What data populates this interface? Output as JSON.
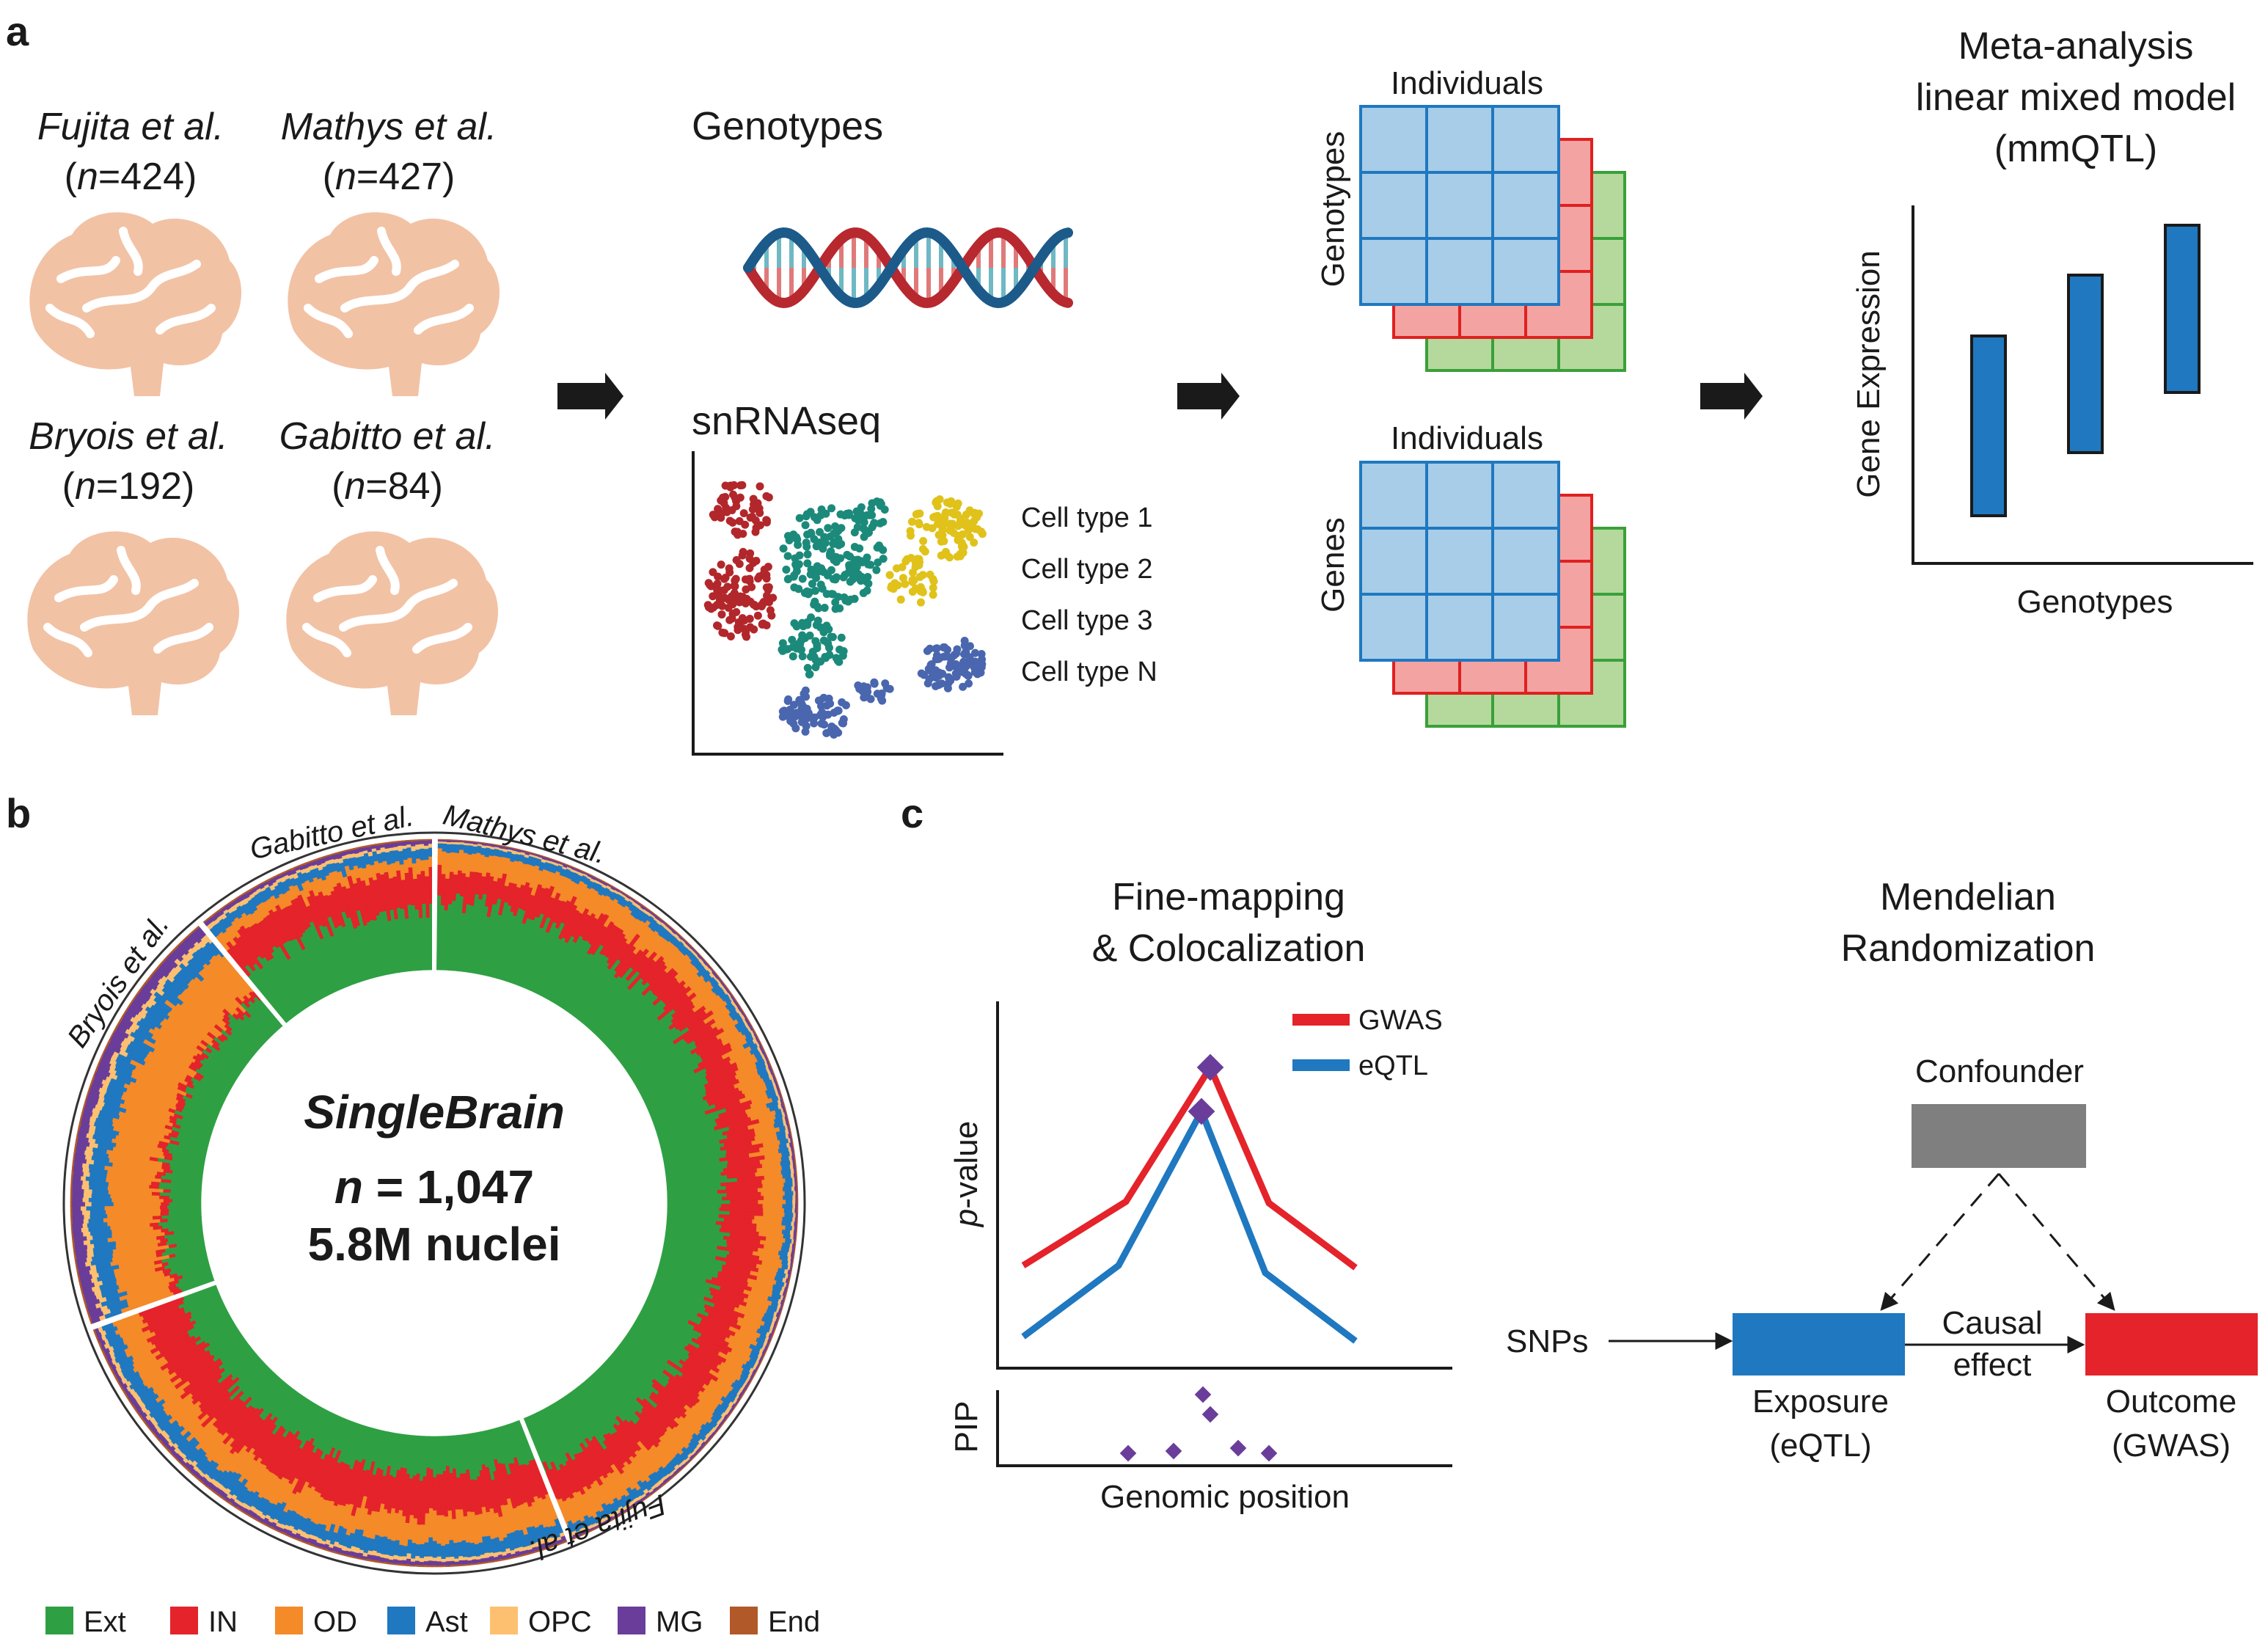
{
  "panels": {
    "a": {
      "label": "a",
      "studies": [
        {
          "name": "Fujita et al.",
          "n_prefix": "(",
          "n_var": "n",
          "n_value": "=424)"
        },
        {
          "name": "Mathys et al.",
          "n_prefix": "(",
          "n_var": "n",
          "n_value": "=427)"
        },
        {
          "name": "Bryois et al.",
          "n_prefix": "(",
          "n_var": "n",
          "n_value": "=192)"
        },
        {
          "name": "Gabitto et al.",
          "n_prefix": "(",
          "n_var": "n",
          "n_value": "=84)"
        }
      ],
      "genotypes_label": "Genotypes",
      "snrnaseq_label": "snRNAseq",
      "cell_types": [
        {
          "label": "Cell type 1",
          "color": "#b2272b"
        },
        {
          "label": "Cell type 2",
          "color": "#1c8a7a"
        },
        {
          "label": "Cell type 3",
          "color": "#e0c21a"
        },
        {
          "label": "Cell type N",
          "color": "#4a66ae"
        }
      ],
      "matrix_top": {
        "col_label": "Individuals",
        "row_label": "Genotypes"
      },
      "matrix_bottom": {
        "col_label": "Individuals",
        "row_label": "Genes"
      },
      "meta_title": [
        "Meta-analysis",
        "linear mixed model",
        "(mmQTL)"
      ],
      "meta_ylabel": "Gene Expression",
      "meta_xlabel": "Genotypes"
    },
    "b": {
      "label": "b",
      "center_title": "SingleBrain",
      "center_n_var": "n",
      "center_n_value": " = 1,047",
      "center_nuclei": "5.8M nuclei",
      "study_labels": [
        "Gabitto et al.",
        "Mathys et al.",
        "Bryois et al.",
        "Fujita et al."
      ],
      "legend": [
        {
          "label": "Ext",
          "color": "#2ea043"
        },
        {
          "label": "IN",
          "color": "#e4232a"
        },
        {
          "label": "OD",
          "color": "#f58a28"
        },
        {
          "label": "Ast",
          "color": "#1f78c0"
        },
        {
          "label": "OPC",
          "color": "#fdc070"
        },
        {
          "label": "MG",
          "color": "#6a3d9a"
        },
        {
          "label": "End",
          "color": "#b15928"
        }
      ]
    },
    "c": {
      "label": "c",
      "fm_title": [
        "Fine-mapping",
        "& Colocalization"
      ],
      "series": [
        {
          "name": "GWAS",
          "color": "#e4232a"
        },
        {
          "name": "eQTL",
          "color": "#1f78c0"
        }
      ],
      "ylabel_var": "p",
      "ylabel_rest": "-value",
      "pip_label": "PIP",
      "xlabel": "Genomic position",
      "mr_title": [
        "Mendelian",
        "Randomization"
      ],
      "confounder": "Confounder",
      "snps": "SNPs",
      "causal": [
        "Causal",
        "effect"
      ],
      "exposure": [
        "Exposure",
        "(eQTL)"
      ],
      "outcome": [
        "Outcome",
        "(GWAS)"
      ],
      "gray": "#7f7f7f"
    }
  }
}
